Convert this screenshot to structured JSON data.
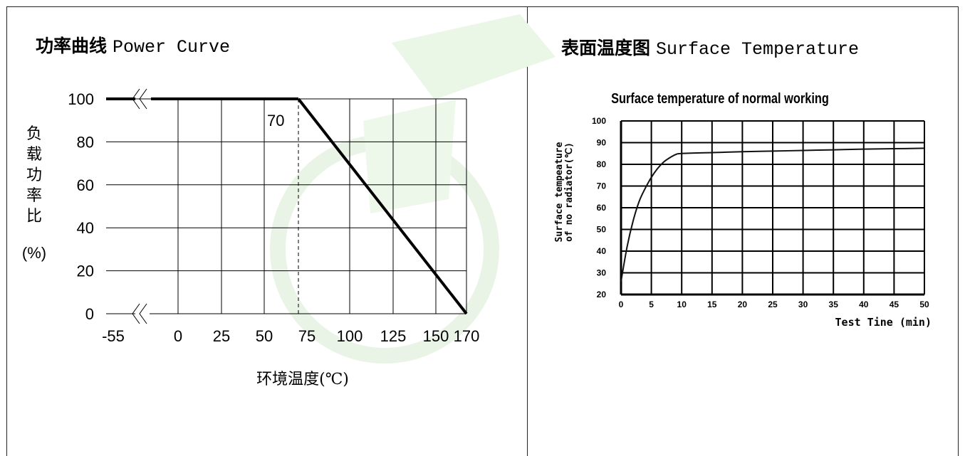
{
  "panels": [
    {
      "title_zh": "功率曲线",
      "title_en": "Power Curve"
    },
    {
      "title_zh": "表面温度图",
      "title_en": "Surface Temperature"
    }
  ],
  "chart_data": [
    {
      "type": "line",
      "title": "功率曲线 Power Curve",
      "xlabel": "环境温度(℃)",
      "ylabel_chars": [
        "负",
        "载",
        "功",
        "率",
        "比"
      ],
      "ylabel_unit": "(%)",
      "x_ticks": [
        "-55",
        "0",
        "25",
        "50",
        "75",
        "100",
        "125",
        "150",
        "170"
      ],
      "y_ticks": [
        "0",
        "20",
        "40",
        "60",
        "80",
        "100"
      ],
      "ylim": [
        0,
        100
      ],
      "series": [
        {
          "x": [
            -55,
            70,
            170
          ],
          "y": [
            100,
            100,
            0
          ]
        }
      ],
      "annotations": [
        {
          "text": "70",
          "x": 70,
          "y": 100
        }
      ],
      "grid": true,
      "colors": {
        "line": "#000000",
        "grid": "#000000"
      }
    },
    {
      "type": "line",
      "title": "Surface temperature of normal working",
      "xlabel": "Test Tine (min)",
      "ylabel": [
        "Surface tempeature",
        "of no radiator(℃)"
      ],
      "x_ticks": [
        "0",
        "5",
        "10",
        "15",
        "20",
        "25",
        "30",
        "35",
        "40",
        "45",
        "50"
      ],
      "y_ticks": [
        "20",
        "30",
        "40",
        "50",
        "60",
        "70",
        "80",
        "90",
        "100"
      ],
      "xlim": [
        0,
        50
      ],
      "ylim": [
        20,
        100
      ],
      "series": [
        {
          "x": [
            0,
            1,
            2,
            3,
            4,
            5,
            6,
            7,
            8,
            9,
            10,
            15,
            20,
            25,
            30,
            35,
            40,
            45,
            50
          ],
          "y": [
            26,
            42,
            54,
            63,
            69,
            74,
            78,
            81,
            83,
            84.5,
            85,
            85.4,
            85.8,
            86.1,
            86.4,
            86.7,
            87,
            87.2,
            87.4
          ]
        }
      ],
      "grid": true
    }
  ]
}
